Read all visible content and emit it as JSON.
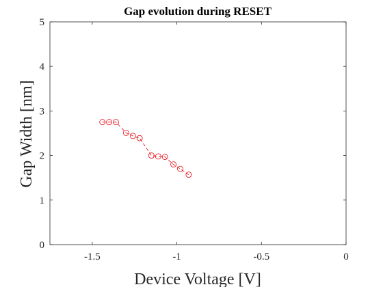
{
  "chart_data": {
    "type": "scatter",
    "title": "Gap evolution during RESET",
    "xlabel": "Device Voltage [V]",
    "ylabel": "Gap Width [nm]",
    "xlim": [
      -1.75,
      0
    ],
    "ylim": [
      0,
      5
    ],
    "x_ticks": [
      "-1.5",
      "-1",
      "-0.5",
      "0"
    ],
    "y_ticks": [
      "0",
      "1",
      "2",
      "3",
      "4",
      "5"
    ],
    "grid": false,
    "series_color": "#e8000b",
    "series": [
      {
        "x": [
          -1.44,
          -1.4,
          -1.36,
          -1.3,
          -1.26,
          -1.22,
          -1.15,
          -1.11,
          -1.07,
          -1.02,
          -0.98,
          -0.93
        ],
        "y": [
          2.75,
          2.75,
          2.75,
          2.51,
          2.44,
          2.39,
          2.0,
          1.98,
          1.97,
          1.8,
          1.7,
          1.57
        ]
      }
    ]
  }
}
